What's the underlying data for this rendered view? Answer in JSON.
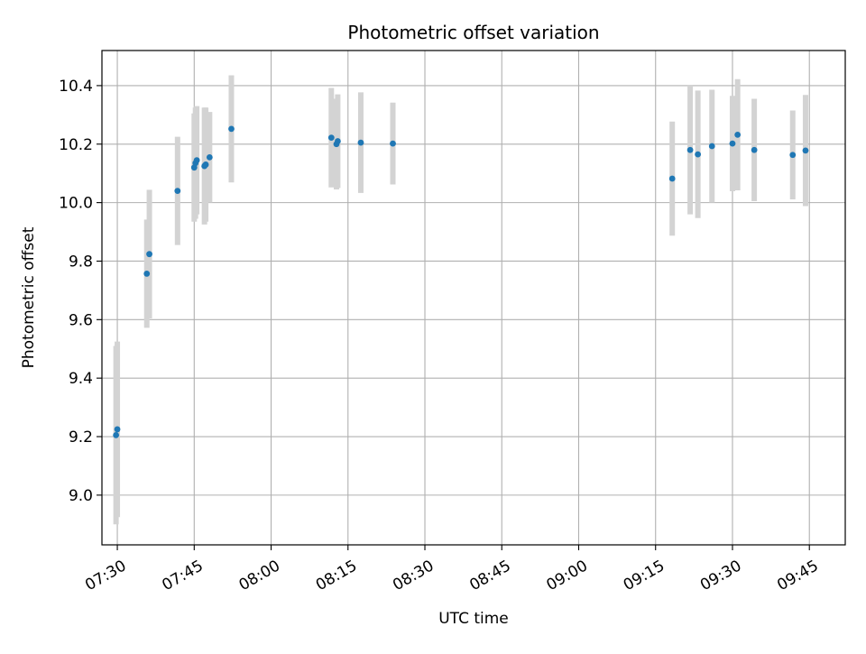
{
  "chart_data": {
    "type": "scatter",
    "title": "Photometric offset variation",
    "xlabel": "UTC time",
    "ylabel": "Photometric offset",
    "x_tick_labels": [
      "07:30",
      "07:45",
      "08:00",
      "08:15",
      "08:30",
      "08:45",
      "09:00",
      "09:15",
      "09:30",
      "09:45"
    ],
    "y_tick_labels": [
      "9.0",
      "9.2",
      "9.4",
      "9.6",
      "9.8",
      "10.0",
      "10.2",
      "10.4"
    ],
    "xlim": [
      "07:27",
      "09:52"
    ],
    "ylim": [
      8.83,
      10.52
    ],
    "grid": true,
    "colors": {
      "points": "#1f77b4",
      "errorbars": "#d3d3d3",
      "grid": "#b0b0b0"
    },
    "points": [
      {
        "x": "07:29:45",
        "y": 9.205,
        "err": 0.305
      },
      {
        "x": "07:30:00",
        "y": 9.225,
        "err": 0.3
      },
      {
        "x": "07:35:45",
        "y": 9.757,
        "err": 0.185
      },
      {
        "x": "07:36:15",
        "y": 9.824,
        "err": 0.22
      },
      {
        "x": "07:41:45",
        "y": 10.04,
        "err": 0.185
      },
      {
        "x": "07:45:00",
        "y": 10.12,
        "err": 0.185
      },
      {
        "x": "07:45:15",
        "y": 10.135,
        "err": 0.19
      },
      {
        "x": "07:45:30",
        "y": 10.145,
        "err": 0.185
      },
      {
        "x": "07:47:00",
        "y": 10.125,
        "err": 0.2
      },
      {
        "x": "07:47:15",
        "y": 10.13,
        "err": 0.195
      },
      {
        "x": "07:48:00",
        "y": 10.155,
        "err": 0.155
      },
      {
        "x": "07:52:15",
        "y": 10.252,
        "err": 0.183
      },
      {
        "x": "08:11:45",
        "y": 10.222,
        "err": 0.17
      },
      {
        "x": "08:12:45",
        "y": 10.2,
        "err": 0.155
      },
      {
        "x": "08:13:00",
        "y": 10.21,
        "err": 0.16
      },
      {
        "x": "08:17:30",
        "y": 10.205,
        "err": 0.172
      },
      {
        "x": "08:23:45",
        "y": 10.202,
        "err": 0.14
      },
      {
        "x": "09:18:15",
        "y": 10.082,
        "err": 0.195
      },
      {
        "x": "09:21:45",
        "y": 10.18,
        "err": 0.22
      },
      {
        "x": "09:23:15",
        "y": 10.165,
        "err": 0.218
      },
      {
        "x": "09:26:00",
        "y": 10.193,
        "err": 0.193
      },
      {
        "x": "09:30:00",
        "y": 10.202,
        "err": 0.163
      },
      {
        "x": "09:31:00",
        "y": 10.232,
        "err": 0.19
      },
      {
        "x": "09:34:15",
        "y": 10.18,
        "err": 0.175
      },
      {
        "x": "09:41:45",
        "y": 10.163,
        "err": 0.152
      },
      {
        "x": "09:44:15",
        "y": 10.178,
        "err": 0.19
      }
    ]
  }
}
